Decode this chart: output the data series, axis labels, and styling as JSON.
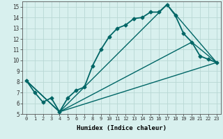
{
  "title": "",
  "xlabel": "Humidex (Indice chaleur)",
  "bg_color": "#d8f0ee",
  "line_color": "#006666",
  "grid_color": "#b8d8d4",
  "xlim": [
    -0.5,
    23.5
  ],
  "ylim": [
    5,
    15.5
  ],
  "yticks": [
    5,
    6,
    7,
    8,
    9,
    10,
    11,
    12,
    13,
    14,
    15
  ],
  "xticks": [
    0,
    1,
    2,
    3,
    4,
    5,
    6,
    7,
    8,
    9,
    10,
    11,
    12,
    13,
    14,
    15,
    16,
    17,
    18,
    19,
    20,
    21,
    22,
    23
  ],
  "lines": [
    {
      "x": [
        0,
        1,
        2,
        3,
        4,
        5,
        6,
        7,
        8,
        9,
        10,
        11,
        12,
        13,
        14,
        15,
        16,
        17,
        18,
        19,
        20,
        21,
        22,
        23
      ],
      "y": [
        8.1,
        7.0,
        6.1,
        6.5,
        5.2,
        6.5,
        7.2,
        7.5,
        9.5,
        11.0,
        12.2,
        13.0,
        13.3,
        13.9,
        14.0,
        14.5,
        14.5,
        15.2,
        14.2,
        12.5,
        11.7,
        10.4,
        10.1,
        9.8
      ],
      "marker": "D",
      "markersize": 2.5,
      "linewidth": 1.3
    },
    {
      "x": [
        0,
        4,
        17,
        23
      ],
      "y": [
        8.1,
        5.2,
        15.2,
        9.8
      ],
      "marker": null,
      "linewidth": 1.0
    },
    {
      "x": [
        0,
        4,
        20,
        23
      ],
      "y": [
        8.1,
        5.2,
        11.7,
        9.8
      ],
      "marker": null,
      "linewidth": 1.0
    },
    {
      "x": [
        0,
        4,
        23
      ],
      "y": [
        8.1,
        5.2,
        9.8
      ],
      "marker": null,
      "linewidth": 1.0
    }
  ]
}
